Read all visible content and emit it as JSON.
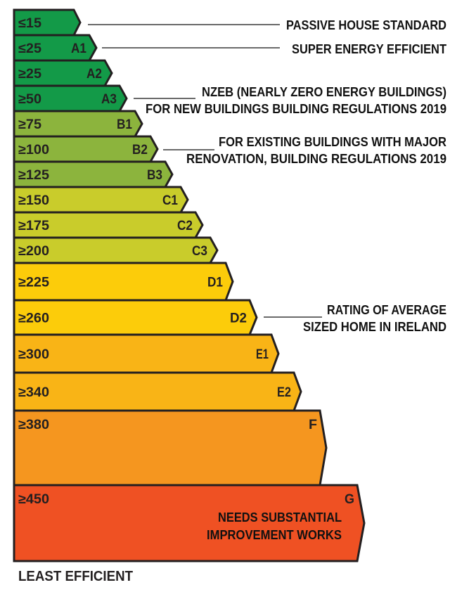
{
  "ratings": [
    {
      "value": "≤15",
      "grade": "",
      "color": "#139a48"
    },
    {
      "value": "≤25",
      "grade": "A1",
      "color": "#139a48"
    },
    {
      "value": "≥25",
      "grade": "A2",
      "color": "#139a48"
    },
    {
      "value": "≥50",
      "grade": "A3",
      "color": "#139a48"
    },
    {
      "value": "≥75",
      "grade": "B1",
      "color": "#8cb43d"
    },
    {
      "value": "≥100",
      "grade": "B2",
      "color": "#8cb43d"
    },
    {
      "value": "≥125",
      "grade": "B3",
      "color": "#8cb43d"
    },
    {
      "value": "≥150",
      "grade": "C1",
      "color": "#c9cc2b"
    },
    {
      "value": "≥175",
      "grade": "C2",
      "color": "#c9cc2b"
    },
    {
      "value": "≥200",
      "grade": "C3",
      "color": "#c9cc2b"
    },
    {
      "value": "≥225",
      "grade": "D1",
      "color": "#fccc0a"
    },
    {
      "value": "≥260",
      "grade": "D2",
      "color": "#fccc0a"
    },
    {
      "value": "≥300",
      "grade": "E1",
      "color": "#f9b416"
    },
    {
      "value": "≥340",
      "grade": "E2",
      "color": "#f9b416"
    },
    {
      "value": "≥380",
      "grade": "F",
      "color": "#f5961f"
    },
    {
      "value": "≥450",
      "grade": "G",
      "color": "#ef5123"
    }
  ],
  "g_note": [
    "NEEDS SUBSTANTIAL",
    "IMPROVEMENT WORKS"
  ],
  "annotations": {
    "passive": "PASSIVE HOUSE STANDARD",
    "super": "SUPER ENERGY EFFICIENT",
    "nzeb": [
      "NZEB (NEARLY ZERO ENERGY BUILDINGS)",
      "FOR NEW BUILDINGS BUILDING REGULATIONS 2019"
    ],
    "existing": [
      "FOR EXISTING BUILDINGS WITH MAJOR",
      "RENOVATION, BUILDING REGULATIONS 2019"
    ],
    "average": [
      "RATING OF AVERAGE",
      "SIZED HOME IN IRELAND"
    ]
  },
  "footer": "LEAST EFFICIENT",
  "border_color": "#231f20"
}
